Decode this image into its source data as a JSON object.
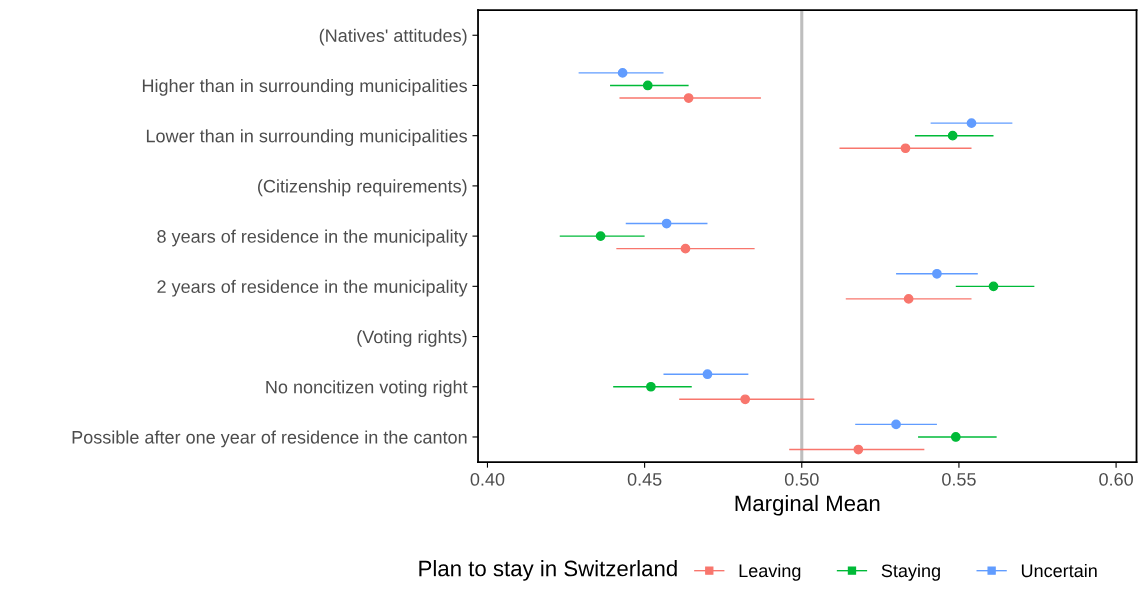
{
  "chart_data": {
    "type": "scatter",
    "orientation": "horizontal",
    "xlabel": "Marginal Mean",
    "legend_title": "Plan to stay in Switzerland",
    "legend": "bottom",
    "marker": "circle",
    "grid": false,
    "categories": [
      "(Natives' attitudes)",
      "Higher than in surrounding municipalities",
      "Lower than in surrounding municipalities",
      "(Citizenship requirements)",
      "8 years of residence in the municipality",
      "2 years of residence in the municipality",
      "(Voting rights)",
      "No noncitizen voting right",
      "Possible after one year of residence in the canton"
    ],
    "xlim": [
      0.397,
      0.6065
    ],
    "xticks": [
      {
        "value": 0.4,
        "label": "0.40"
      },
      {
        "value": 0.45,
        "label": "0.45"
      },
      {
        "value": 0.5,
        "label": "0.50"
      },
      {
        "value": 0.55,
        "label": "0.55"
      },
      {
        "value": 0.6,
        "label": "0.60"
      }
    ],
    "ref_lines": [
      {
        "axis": "x",
        "value": 0.5,
        "color": "#bebebe"
      }
    ],
    "series": [
      {
        "name": "Leaving",
        "color": "#f8766d",
        "values": [
          null,
          0.464,
          0.533,
          null,
          0.463,
          0.534,
          null,
          0.482,
          0.518
        ],
        "errors": [
          null,
          [
            0.442,
            0.487
          ],
          [
            0.512,
            0.554
          ],
          null,
          [
            0.441,
            0.485
          ],
          [
            0.514,
            0.554
          ],
          null,
          [
            0.461,
            0.504
          ],
          [
            0.496,
            0.539
          ]
        ]
      },
      {
        "name": "Staying",
        "color": "#00ba38",
        "values": [
          null,
          0.451,
          0.548,
          null,
          0.436,
          0.561,
          null,
          0.452,
          0.549
        ],
        "errors": [
          null,
          [
            0.439,
            0.464
          ],
          [
            0.536,
            0.561
          ],
          null,
          [
            0.423,
            0.45
          ],
          [
            0.549,
            0.574
          ],
          null,
          [
            0.44,
            0.465
          ],
          [
            0.537,
            0.562
          ]
        ]
      },
      {
        "name": "Uncertain",
        "color": "#619cff",
        "values": [
          null,
          0.443,
          0.554,
          null,
          0.457,
          0.543,
          null,
          0.47,
          0.53
        ],
        "errors": [
          null,
          [
            0.429,
            0.456
          ],
          [
            0.541,
            0.567
          ],
          null,
          [
            0.444,
            0.47
          ],
          [
            0.53,
            0.556
          ],
          null,
          [
            0.456,
            0.483
          ],
          [
            0.517,
            0.543
          ]
        ]
      }
    ]
  }
}
